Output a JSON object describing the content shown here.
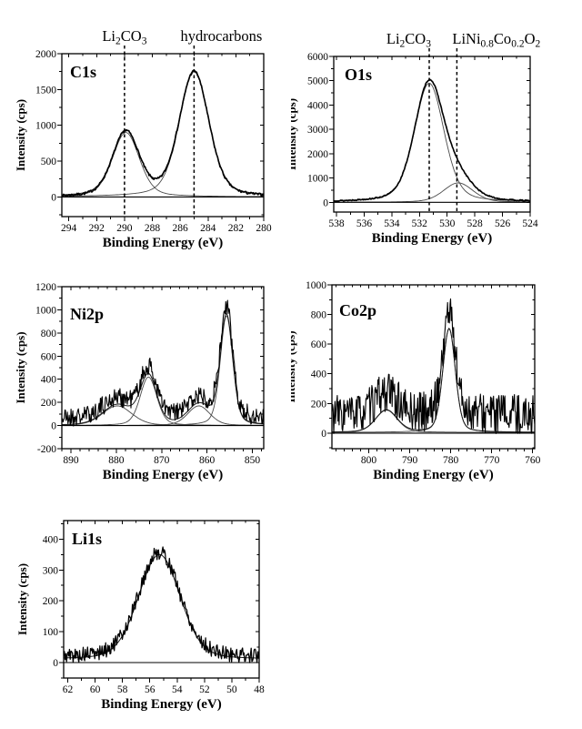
{
  "figure": {
    "background_color": "#ffffff",
    "ink_color": "#000000",
    "description_visible_panels": [
      "C1s",
      "O1s",
      "Ni2p",
      "Co2p",
      "Li1s"
    ]
  },
  "chart_data": {
    "type": "line",
    "panels": [
      {
        "id": "c1s",
        "title": "C1s",
        "xlabel": "Binding Energy (eV)",
        "ylabel": "Intensity (cps)",
        "x_descending": true,
        "xlim": [
          294.5,
          280
        ],
        "ylim": [
          -275,
          2000
        ],
        "xticks": [
          294,
          292,
          290,
          288,
          286,
          284,
          282,
          280
        ],
        "xminor_step": 1,
        "yticks": [
          0,
          500,
          1000,
          1500,
          2000
        ],
        "yminor_step": 250,
        "annotations": [
          {
            "x": 290.0,
            "label": "Li_{2}CO_{3}",
            "anchor": "middle",
            "dx": 0
          },
          {
            "x": 285.0,
            "label": "hydrocarbons",
            "anchor": "middle",
            "dx": 30
          }
        ],
        "peaks": [
          {
            "assignment": "Li2CO3",
            "center_eV": 289.9,
            "height_cps": 900,
            "sigma_eV": 0.95
          },
          {
            "assignment": "hydrocarbons",
            "center_eV": 285.0,
            "height_cps": 1750,
            "sigma_eV": 1.05
          }
        ],
        "lorentz_fraction": 0.3,
        "fit_baseline_cps": 0,
        "measured_baseline_cps": -10,
        "noise_amp_cps": 18,
        "samples": 250,
        "seed": 7
      },
      {
        "id": "o1s",
        "title": "O1s",
        "xlabel": "Binding Energy (eV)",
        "ylabel": "Intensity (cps)",
        "x_descending": true,
        "xlim": [
          538.2,
          524
        ],
        "ylim": [
          -400,
          6000
        ],
        "xticks": [
          538,
          536,
          534,
          532,
          530,
          528,
          526,
          524
        ],
        "xminor_step": 1,
        "yticks": [
          0,
          1000,
          2000,
          3000,
          4000,
          5000,
          6000
        ],
        "yminor_step": 500,
        "annotations": [
          {
            "x": 531.3,
            "label": "Li_{2}CO_{3}",
            "anchor": "end",
            "dx": 2
          },
          {
            "x": 529.3,
            "label": "LiNi_{0.8}Co_{0.2}O_{2}",
            "anchor": "start",
            "dx": -5
          }
        ],
        "peaks": [
          {
            "assignment": "Li2CO3",
            "center_eV": 531.3,
            "height_cps": 4900,
            "sigma_eV": 1.05
          },
          {
            "assignment": "LiNi0.8Co0.2O2",
            "center_eV": 529.2,
            "height_cps": 800,
            "sigma_eV": 1.05
          }
        ],
        "lorentz_fraction": 0.3,
        "fit_baseline_cps": 0,
        "measured_baseline_cps": 0,
        "noise_amp_cps": 26,
        "samples": 250,
        "seed": 13
      },
      {
        "id": "ni2p",
        "title": "Ni2p",
        "xlabel": "Binding Energy (eV)",
        "ylabel": "Intensity (cps)",
        "x_descending": true,
        "xlim": [
          892,
          847.5
        ],
        "ylim": [
          -200,
          1200
        ],
        "xticks": [
          890,
          880,
          870,
          860,
          850
        ],
        "xminor_step": 2,
        "yticks": [
          -200,
          0,
          200,
          400,
          600,
          800,
          1000,
          1200
        ],
        "yminor_step": 100,
        "annotations": [],
        "peaks": [
          {
            "center_eV": 879.8,
            "height_cps": 170,
            "sigma_eV": 3.2
          },
          {
            "center_eV": 872.9,
            "height_cps": 420,
            "sigma_eV": 1.8
          },
          {
            "center_eV": 861.8,
            "height_cps": 170,
            "sigma_eV": 2.4
          },
          {
            "center_eV": 855.7,
            "height_cps": 950,
            "sigma_eV": 1.35
          }
        ],
        "lorentz_fraction": 0.28,
        "fit_baseline_cps": 0,
        "measured_baseline_cps": 60,
        "noise_amp_cps": 85,
        "samples": 330,
        "seed": 21
      },
      {
        "id": "co2p",
        "title": "Co2p",
        "xlabel": "Binding Energy (eV)",
        "ylabel": "Intensity (cps)",
        "x_descending": true,
        "xlim": [
          809,
          759.5
        ],
        "ylim": [
          -105,
          1000
        ],
        "xticks": [
          800,
          790,
          780,
          770,
          760
        ],
        "xminor_step": 2,
        "yticks": [
          0,
          200,
          400,
          600,
          800,
          1000
        ],
        "yminor_step": 100,
        "annotations": [],
        "peaks": [
          {
            "center_eV": 795.7,
            "height_cps": 150,
            "sigma_eV": 2.6
          },
          {
            "center_eV": 780.4,
            "height_cps": 700,
            "sigma_eV": 1.5
          }
        ],
        "lorentz_fraction": 0.25,
        "fit_baseline_cps": 5,
        "measured_baseline_cps": 125,
        "noise_amp_cps": 135,
        "samples": 340,
        "seed": 33
      },
      {
        "id": "li1s",
        "title": "Li1s",
        "xlabel": "Binding Energy (eV)",
        "ylabel": "Intensity (cps)",
        "x_descending": true,
        "xlim": [
          62.3,
          48
        ],
        "ylim": [
          -50,
          460
        ],
        "xticks": [
          62,
          60,
          58,
          56,
          54,
          52,
          50,
          48
        ],
        "xminor_step": 1,
        "yticks": [
          0,
          100,
          200,
          300,
          400
        ],
        "yminor_step": 50,
        "annotations": [],
        "peaks": [
          {
            "center_eV": 55.3,
            "height_cps": 340,
            "sigma_eV": 1.5
          }
        ],
        "lorentz_fraction": 0.2,
        "fit_baseline_cps": 10,
        "measured_baseline_cps": 18,
        "noise_amp_cps": 24,
        "samples": 270,
        "seed": 5
      }
    ]
  }
}
